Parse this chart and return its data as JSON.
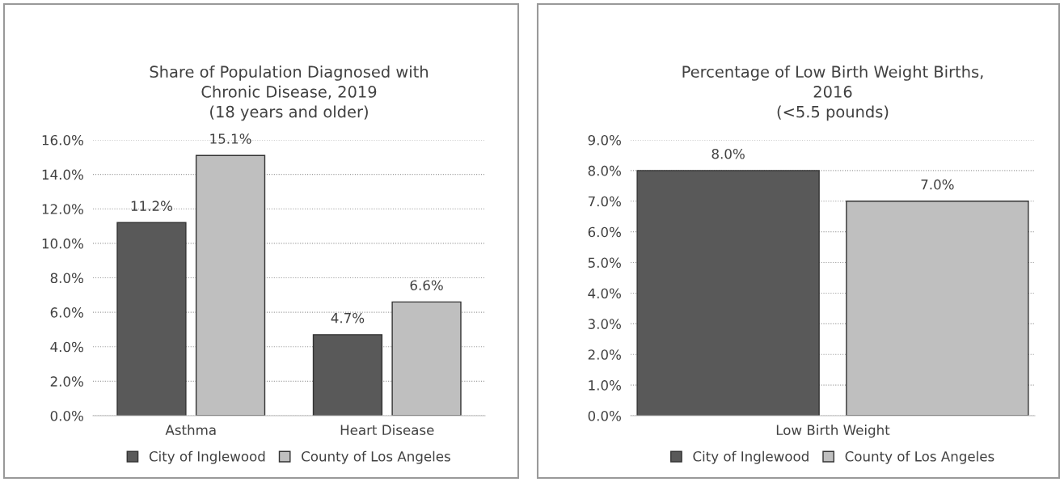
{
  "chart_data": [
    {
      "type": "bar",
      "title": "Share of Population Diagnosed with\nChronic Disease, 2019\n(18 years and older)",
      "categories": [
        "Asthma",
        "Heart Disease"
      ],
      "series": [
        {
          "name": "City of Inglewood",
          "color": "#595959",
          "values": [
            11.2,
            4.7
          ],
          "value_labels": [
            "11.2%",
            "4.7%"
          ]
        },
        {
          "name": "County of Los Angeles",
          "color": "#bfbfbf",
          "values": [
            15.1,
            6.6
          ],
          "value_labels": [
            "15.1%",
            "6.6%"
          ]
        }
      ],
      "ylim": [
        0,
        16
      ],
      "yticks": [
        {
          "value": 0,
          "label": "0.0%"
        },
        {
          "value": 2,
          "label": "2.0%"
        },
        {
          "value": 4,
          "label": "4.0%"
        },
        {
          "value": 6,
          "label": "6.0%"
        },
        {
          "value": 8,
          "label": "8.0%"
        },
        {
          "value": 10,
          "label": "10.0%"
        },
        {
          "value": 12,
          "label": "12.0%"
        },
        {
          "value": 14,
          "label": "14.0%"
        },
        {
          "value": 16,
          "label": "16.0%"
        }
      ],
      "grid": "y",
      "legend": "bottom"
    },
    {
      "type": "bar",
      "title": "Percentage of Low Birth Weight Births,\n2016\n(<5.5 pounds)",
      "categories": [
        "Low Birth Weight"
      ],
      "series": [
        {
          "name": "City of Inglewood",
          "color": "#595959",
          "values": [
            8.0
          ],
          "value_labels": [
            "8.0%"
          ]
        },
        {
          "name": "County of Los Angeles",
          "color": "#bfbfbf",
          "values": [
            7.0
          ],
          "value_labels": [
            "7.0%"
          ]
        }
      ],
      "ylim": [
        0,
        9
      ],
      "yticks": [
        {
          "value": 0,
          "label": "0.0%"
        },
        {
          "value": 1,
          "label": "1.0%"
        },
        {
          "value": 2,
          "label": "2.0%"
        },
        {
          "value": 3,
          "label": "3.0%"
        },
        {
          "value": 4,
          "label": "4.0%"
        },
        {
          "value": 5,
          "label": "5.0%"
        },
        {
          "value": 6,
          "label": "6.0%"
        },
        {
          "value": 7,
          "label": "7.0%"
        },
        {
          "value": 8,
          "label": "8.0%"
        },
        {
          "value": 9,
          "label": "9.0%"
        }
      ],
      "grid": "y",
      "legend": "bottom"
    }
  ]
}
